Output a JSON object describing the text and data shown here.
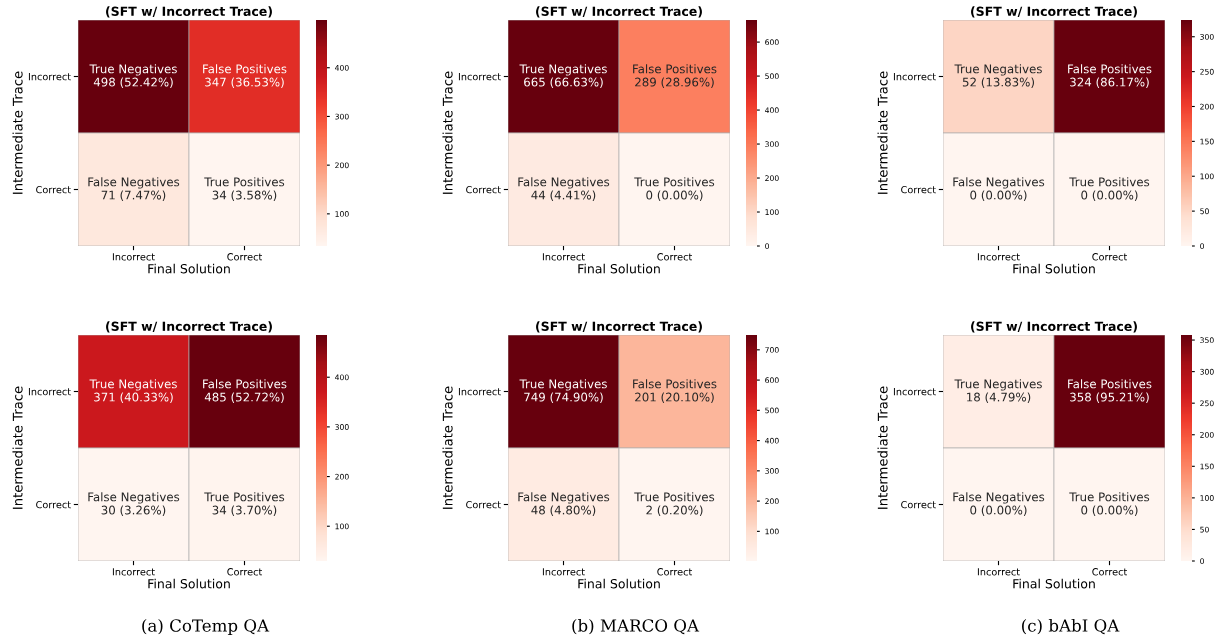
{
  "chart_data": [
    {
      "type": "heatmap",
      "title": "(SFT w/ Incorrect Trace)",
      "xlabel": "Final Solution",
      "ylabel": "Intermediate Trace",
      "categories": [
        "Incorrect",
        "Correct"
      ],
      "y_categories": [
        "Incorrect",
        "Correct"
      ],
      "cells": [
        [
          498,
          347
        ],
        [
          71,
          34
        ]
      ],
      "cell_labels": [
        [
          "True Negatives\n498 (52.42%)",
          "False Positives\n347 (36.53%)"
        ],
        [
          "False Negatives\n71 (7.47%)",
          "True Positives\n34 (3.58%)"
        ]
      ],
      "clim": [
        34,
        498
      ],
      "cticks": [
        100,
        200,
        300,
        400
      ]
    },
    {
      "type": "heatmap",
      "title": "(SFT w/ Incorrect Trace)",
      "xlabel": "Final Solution",
      "ylabel": "Intermediate Trace",
      "categories": [
        "Incorrect",
        "Correct"
      ],
      "y_categories": [
        "Incorrect",
        "Correct"
      ],
      "cells": [
        [
          665,
          289
        ],
        [
          44,
          0
        ]
      ],
      "cell_labels": [
        [
          "True Negatives\n665 (66.63%)",
          "False Positives\n289 (28.96%)"
        ],
        [
          "False Negatives\n44 (4.41%)",
          "True Positives\n0 (0.00%)"
        ]
      ],
      "clim": [
        0,
        665
      ],
      "cticks": [
        0,
        100,
        200,
        300,
        400,
        500,
        600
      ]
    },
    {
      "type": "heatmap",
      "title": "(SFT w/ Incorrect Trace)",
      "xlabel": "Final Solution",
      "ylabel": "Intermediate Trace",
      "categories": [
        "Incorrect",
        "Correct"
      ],
      "y_categories": [
        "Incorrect",
        "Correct"
      ],
      "cells": [
        [
          52,
          324
        ],
        [
          0,
          0
        ]
      ],
      "cell_labels": [
        [
          "True Negatives\n52 (13.83%)",
          "False Positives\n324 (86.17%)"
        ],
        [
          "False Negatives\n0 (0.00%)",
          "True Positives\n0 (0.00%)"
        ]
      ],
      "clim": [
        0,
        324
      ],
      "cticks": [
        0,
        50,
        100,
        150,
        200,
        250,
        300
      ]
    },
    {
      "type": "heatmap",
      "title": "(SFT w/ Incorrect Trace)",
      "xlabel": "Final Solution",
      "ylabel": "Intermediate Trace",
      "categories": [
        "Incorrect",
        "Correct"
      ],
      "y_categories": [
        "Incorrect",
        "Correct"
      ],
      "cells": [
        [
          371,
          485
        ],
        [
          30,
          34
        ]
      ],
      "cell_labels": [
        [
          "True Negatives\n371 (40.33%)",
          "False Positives\n485 (52.72%)"
        ],
        [
          "False Negatives\n30 (3.26%)",
          "True Positives\n34 (3.70%)"
        ]
      ],
      "clim": [
        30,
        485
      ],
      "cticks": [
        100,
        200,
        300,
        400
      ],
      "annotations": [
        "(a) CoTemp QA"
      ]
    },
    {
      "type": "heatmap",
      "title": "(SFT w/ Incorrect Trace)",
      "xlabel": "Final Solution",
      "ylabel": "Intermediate Trace",
      "categories": [
        "Incorrect",
        "Correct"
      ],
      "y_categories": [
        "Incorrect",
        "Correct"
      ],
      "cells": [
        [
          749,
          201
        ],
        [
          48,
          2
        ]
      ],
      "cell_labels": [
        [
          "True Negatives\n749 (74.90%)",
          "False Positives\n201 (20.10%)"
        ],
        [
          "False Negatives\n48 (4.80%)",
          "True Positives\n2 (0.20%)"
        ]
      ],
      "clim": [
        2,
        749
      ],
      "cticks": [
        100,
        200,
        300,
        400,
        500,
        600,
        700
      ],
      "annotations": [
        "(b) MARCO QA"
      ]
    },
    {
      "type": "heatmap",
      "title": "(SFT w/ Incorrect Trace)",
      "xlabel": "Final Solution",
      "ylabel": "Intermediate Trace",
      "categories": [
        "Incorrect",
        "Correct"
      ],
      "y_categories": [
        "Incorrect",
        "Correct"
      ],
      "cells": [
        [
          18,
          358
        ],
        [
          0,
          0
        ]
      ],
      "cell_labels": [
        [
          "True Negatives\n18 (4.79%)",
          "False Positives\n358 (95.21%)"
        ],
        [
          "False Negatives\n0 (0.00%)",
          "True Positives\n0 (0.00%)"
        ]
      ],
      "clim": [
        0,
        358
      ],
      "cticks": [
        0,
        50,
        100,
        150,
        200,
        250,
        300,
        350
      ],
      "annotations": [
        "(c) bAbI QA"
      ]
    }
  ]
}
